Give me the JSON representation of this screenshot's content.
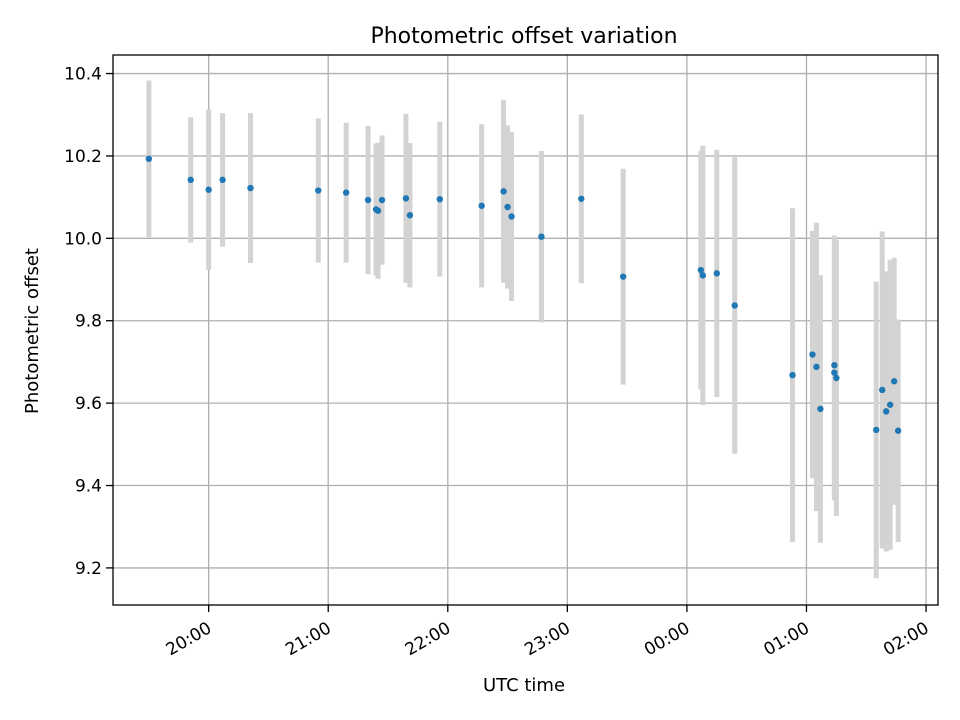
{
  "chart_data": {
    "type": "scatter",
    "title": "Photometric offset variation",
    "xlabel": "UTC time",
    "ylabel": "Photometric offset",
    "x_tick_labels": [
      "20:00",
      "21:00",
      "22:00",
      "23:00",
      "00:00",
      "01:00",
      "02:00"
    ],
    "y_tick_labels": [
      "9.2",
      "9.4",
      "9.6",
      "9.8",
      "10.0",
      "10.2",
      "10.4"
    ],
    "xlim": [
      "19:12",
      "02:06"
    ],
    "ylim": [
      9.11,
      10.445
    ],
    "grid": true,
    "colors": {
      "points": "#1f77b4",
      "errorbars": "#d3d3d3",
      "grid": "#b0b0b0"
    },
    "series": [
      {
        "points": [
          {
            "x": "19:30",
            "y": 10.193,
            "err": 0.19
          },
          {
            "x": "19:51",
            "y": 10.142,
            "err": 0.152
          },
          {
            "x": "20:00",
            "y": 10.118,
            "err": 0.195
          },
          {
            "x": "20:07",
            "y": 10.142,
            "err": 0.162
          },
          {
            "x": "20:21",
            "y": 10.122,
            "err": 0.182
          },
          {
            "x": "20:55",
            "y": 10.116,
            "err": 0.175
          },
          {
            "x": "21:09",
            "y": 10.111,
            "err": 0.17
          },
          {
            "x": "21:20",
            "y": 10.093,
            "err": 0.18
          },
          {
            "x": "21:24",
            "y": 10.07,
            "err": 0.16
          },
          {
            "x": "21:25",
            "y": 10.067,
            "err": 0.165
          },
          {
            "x": "21:27",
            "y": 10.093,
            "err": 0.157
          },
          {
            "x": "21:39",
            "y": 10.097,
            "err": 0.205
          },
          {
            "x": "21:41",
            "y": 10.056,
            "err": 0.175
          },
          {
            "x": "21:56",
            "y": 10.095,
            "err": 0.188
          },
          {
            "x": "22:17",
            "y": 10.079,
            "err": 0.198
          },
          {
            "x": "22:28",
            "y": 10.114,
            "err": 0.222
          },
          {
            "x": "22:30",
            "y": 10.076,
            "err": 0.198
          },
          {
            "x": "22:32",
            "y": 10.053,
            "err": 0.205
          },
          {
            "x": "22:47",
            "y": 10.004,
            "err": 0.208
          },
          {
            "x": "23:07",
            "y": 10.096,
            "err": 0.205
          },
          {
            "x": "23:28",
            "y": 9.907,
            "err": 0.262
          },
          {
            "x": "00:07",
            "y": 9.923,
            "err": 0.29
          },
          {
            "x": "00:08",
            "y": 9.91,
            "err": 0.315
          },
          {
            "x": "00:15",
            "y": 9.915,
            "err": 0.3
          },
          {
            "x": "00:24",
            "y": 9.837,
            "err": 0.36
          },
          {
            "x": "00:53",
            "y": 9.668,
            "err": 0.405
          },
          {
            "x": "01:03",
            "y": 9.718,
            "err": 0.3
          },
          {
            "x": "01:05",
            "y": 9.688,
            "err": 0.35
          },
          {
            "x": "01:07",
            "y": 9.586,
            "err": 0.325
          },
          {
            "x": "01:14",
            "y": 9.692,
            "err": 0.315
          },
          {
            "x": "01:14",
            "y": 9.674,
            "err": 0.31
          },
          {
            "x": "01:15",
            "y": 9.661,
            "err": 0.335
          },
          {
            "x": "01:35",
            "y": 9.535,
            "err": 0.36
          },
          {
            "x": "01:38",
            "y": 9.632,
            "err": 0.385
          },
          {
            "x": "01:40",
            "y": 9.58,
            "err": 0.34
          },
          {
            "x": "01:42",
            "y": 9.596,
            "err": 0.352
          },
          {
            "x": "01:44",
            "y": 9.653,
            "err": 0.3
          },
          {
            "x": "01:46",
            "y": 9.533,
            "err": 0.27
          }
        ]
      }
    ]
  }
}
